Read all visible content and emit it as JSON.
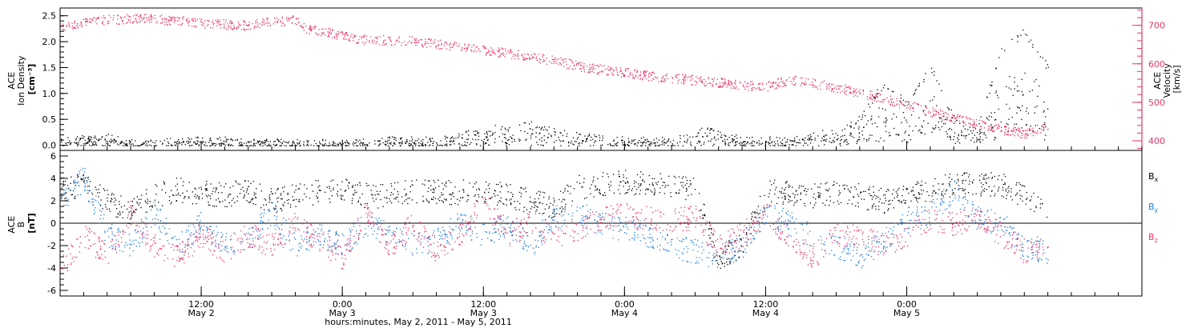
{
  "colors": {
    "black": "#000000",
    "red": "#e8346a",
    "blue": "#1f7fe0"
  },
  "xaxis": {
    "label": "hours:minutes, May  2, 2011 - May  5, 2011",
    "hours_ticks": [
      "12:00",
      "0:00",
      "12:00",
      "0:00",
      "12:00",
      "0:00"
    ],
    "day_ticks": [
      "May 2",
      "May 3",
      "May 3",
      "May 4",
      "May 4",
      "May 5"
    ]
  },
  "chart_data": [
    {
      "type": "scatter",
      "title": "",
      "ylabel": "ACE\nIon Density\n[cm⁻³]",
      "ylim": [
        -0.1,
        2.65
      ],
      "yticks": [
        "0.0",
        "0.5",
        "1.0",
        "1.5",
        "2.0",
        "2.5"
      ],
      "y2label": "ACE\nVelocity\n[km/s]",
      "y2lim": [
        375,
        745
      ],
      "y2ticks": [
        "400",
        "500",
        "600",
        "700"
      ],
      "x_range_hours": [
        0,
        92
      ],
      "series": [
        {
          "name": "",
          "color": "red",
          "axis": "right",
          "x": [
            0,
            4,
            7,
            10,
            13,
            16,
            18,
            20,
            21,
            23,
            25,
            30,
            35,
            40,
            45,
            50,
            55,
            60,
            62,
            65,
            68,
            70,
            73,
            76,
            78,
            80,
            82,
            84
          ],
          "values": [
            700,
            715,
            720,
            712,
            705,
            700,
            710,
            715,
            690,
            680,
            665,
            660,
            640,
            620,
            590,
            570,
            555,
            540,
            560,
            545,
            525,
            510,
            485,
            460,
            445,
            430,
            420,
            440
          ]
        },
        {
          "name": "",
          "color": "black",
          "axis": "left",
          "x": [
            0,
            4,
            6,
            8,
            12,
            16,
            20,
            24,
            28,
            32,
            36,
            40,
            44,
            48,
            50,
            52,
            55,
            58,
            60,
            62,
            64,
            66,
            68,
            70,
            72,
            74,
            76,
            78,
            80,
            82,
            84
          ],
          "values": [
            0.1,
            0.15,
            0.05,
            0.05,
            0.1,
            0.1,
            0.05,
            0.05,
            0.1,
            0.1,
            0.3,
            0.4,
            0.2,
            0.1,
            0.1,
            0.1,
            0.3,
            0.1,
            0.1,
            0.1,
            0.2,
            0.3,
            0.5,
            1.2,
            0.8,
            1.5,
            0.5,
            0.3,
            1.8,
            2.2,
            1.5
          ]
        }
      ]
    },
    {
      "type": "scatter",
      "title": "",
      "ylabel": "ACE\nB\n[nT]",
      "ylim": [
        -6.5,
        6.5
      ],
      "yticks": [
        "-6",
        "-4",
        "-2",
        "0",
        "2",
        "4",
        "6"
      ],
      "x_range_hours": [
        0,
        92
      ],
      "series": [
        {
          "name": "Bx",
          "color": "black",
          "x": [
            0,
            2,
            4,
            6,
            8,
            10,
            12,
            14,
            16,
            18,
            20,
            22,
            24,
            26,
            28,
            30,
            32,
            34,
            36,
            38,
            40,
            42,
            44,
            46,
            48,
            50,
            52,
            54,
            56,
            58,
            60,
            62,
            64,
            66,
            68,
            70,
            72,
            74,
            76,
            78,
            80,
            82,
            84
          ],
          "values": [
            3,
            3.5,
            2,
            1,
            2.5,
            3,
            2.8,
            2.5,
            3,
            2,
            2.5,
            2.8,
            3,
            2.5,
            2.5,
            3,
            2.8,
            2.8,
            3,
            2.5,
            2,
            1.5,
            3.2,
            3.5,
            3.7,
            3.5,
            3.5,
            3,
            -3,
            -2,
            2.8,
            2.8,
            2.5,
            2.8,
            2.5,
            2,
            2.5,
            3,
            3.5,
            3.5,
            3.5,
            2.5,
            1
          ]
        },
        {
          "name": "By",
          "color": "blue",
          "x": [
            0,
            2,
            4,
            6,
            8,
            10,
            12,
            14,
            16,
            18,
            20,
            22,
            24,
            26,
            28,
            30,
            32,
            34,
            36,
            38,
            40,
            42,
            44,
            46,
            48,
            50,
            52,
            54,
            56,
            58,
            60,
            62,
            64,
            66,
            68,
            70,
            72,
            74,
            76,
            78,
            80,
            82,
            84
          ],
          "values": [
            2,
            4,
            -1,
            -2,
            1,
            -2,
            0,
            -2,
            -1.5,
            1,
            -2,
            -1,
            -2,
            0,
            -1,
            -2,
            -1.5,
            0,
            -1,
            0,
            -2,
            0.5,
            1,
            0,
            -0.5,
            -1,
            -2,
            -2.5,
            -3,
            -2,
            1,
            0,
            -1,
            -2,
            -3,
            -1.5,
            0,
            1,
            3,
            0.5,
            0,
            -2,
            -2.5
          ]
        },
        {
          "name": "Bz",
          "color": "red",
          "x": [
            0,
            2,
            4,
            6,
            8,
            10,
            12,
            14,
            16,
            18,
            20,
            22,
            24,
            26,
            28,
            30,
            32,
            34,
            36,
            38,
            40,
            42,
            44,
            46,
            48,
            50,
            52,
            54,
            56,
            58,
            60,
            62,
            64,
            66,
            68,
            70,
            72,
            74,
            76,
            78,
            80,
            82,
            84
          ],
          "values": [
            -4,
            -1,
            -3,
            1,
            -2,
            -3,
            -1,
            -2.5,
            -1,
            -2,
            0,
            -1.5,
            -3,
            1,
            -2,
            0,
            -2.5,
            -1,
            2,
            -1,
            0,
            -1,
            -0.5,
            0.5,
            0.8,
            0.5,
            0.3,
            0.5,
            -2,
            -1,
            1,
            -1.5,
            -3,
            -1,
            -1,
            -2,
            -1,
            0.5,
            0,
            0.5,
            -1,
            -2.5,
            -2
          ]
        }
      ]
    }
  ]
}
